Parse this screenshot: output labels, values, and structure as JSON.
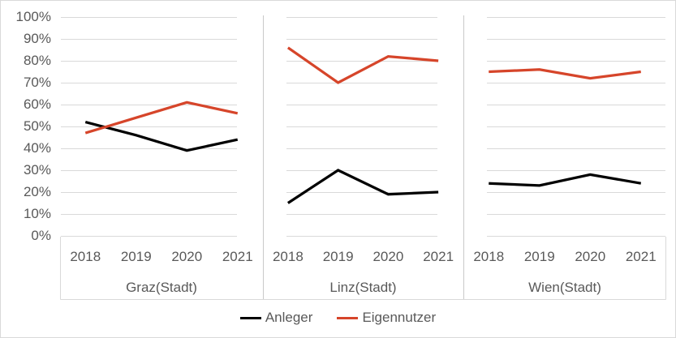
{
  "chart_data": {
    "type": "line",
    "unit": "percent",
    "ylim": [
      0,
      100
    ],
    "y_tick_step": 10,
    "y_tick_labels": [
      "0%",
      "10%",
      "20%",
      "30%",
      "40%",
      "50%",
      "60%",
      "70%",
      "80%",
      "90%",
      "100%"
    ],
    "grid": true,
    "legend_position": "bottom-center",
    "legend": [
      {
        "label": "Anleger",
        "color": "#000000"
      },
      {
        "label": "Eigennutzer",
        "color": "#d6452a"
      }
    ],
    "facets": [
      {
        "label": "Graz(Stadt)",
        "x": [
          "2018",
          "2019",
          "2020",
          "2021"
        ],
        "series": [
          {
            "name": "Anleger",
            "color": "#000000",
            "values": [
              52,
              46,
              39,
              44
            ]
          },
          {
            "name": "Eigennutzer",
            "color": "#d6452a",
            "values": [
              47,
              54,
              61,
              56
            ]
          }
        ]
      },
      {
        "label": "Linz(Stadt)",
        "x": [
          "2018",
          "2019",
          "2020",
          "2021"
        ],
        "series": [
          {
            "name": "Anleger",
            "color": "#000000",
            "values": [
              15,
              30,
              19,
              20
            ]
          },
          {
            "name": "Eigennutzer",
            "color": "#d6452a",
            "values": [
              86,
              70,
              82,
              80
            ]
          }
        ]
      },
      {
        "label": "Wien(Stadt)",
        "x": [
          "2018",
          "2019",
          "2020",
          "2021"
        ],
        "series": [
          {
            "name": "Anleger",
            "color": "#000000",
            "values": [
              24,
              23,
              28,
              24
            ]
          },
          {
            "name": "Eigennutzer",
            "color": "#d6452a",
            "values": [
              75,
              76,
              72,
              75
            ]
          }
        ]
      }
    ],
    "colors": {
      "gridline": "#d9d9d9",
      "panel_divider": "#c9c9c9",
      "axis_box": "#d9d9d9",
      "tick_text": "#595959"
    }
  }
}
